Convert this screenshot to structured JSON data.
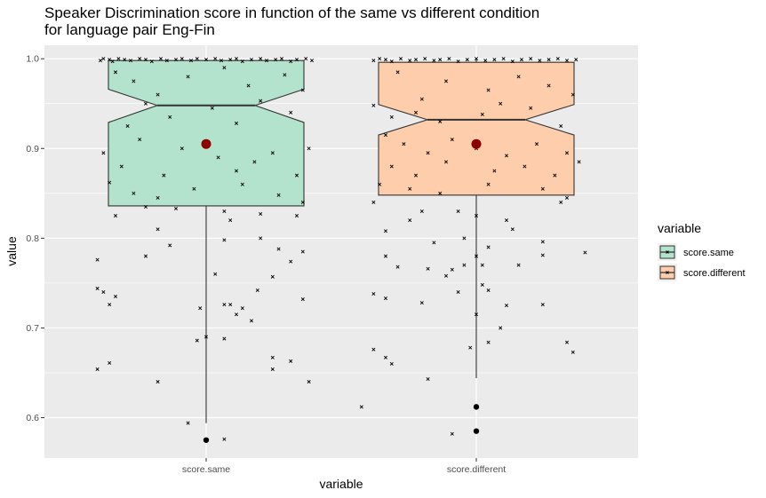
{
  "chart_data": {
    "type": "boxplot",
    "title": "Speaker Discrimination score in function of the same vs different condition\nfor language pair Eng-Fin",
    "xlabel": "variable",
    "ylabel": "value",
    "categories": [
      "score.same",
      "score.different"
    ],
    "ylim": [
      0.555,
      1.015
    ],
    "yticks": [
      0.6,
      0.7,
      0.8,
      0.9,
      1.0
    ],
    "ytick_labels": [
      "0.6",
      "0.7",
      "0.8",
      "0.9",
      "1.0"
    ],
    "notched": true,
    "grid": true,
    "legend": {
      "title": "variable",
      "position": "right",
      "entries": [
        "score.same",
        "score.different"
      ]
    },
    "colors": {
      "score.same": "#b3e2cd",
      "score.different": "#fdcdac",
      "panel": "#ebebeb",
      "mean_point": "#8b0000"
    },
    "boxes": [
      {
        "name": "score.same",
        "q1": 0.836,
        "median": 0.948,
        "q3": 0.998,
        "notch_low": 0.929,
        "notch_high": 0.966,
        "whisker_low": 0.594,
        "whisker_high": 1.0,
        "mean": 0.905,
        "outliers": [
          0.575
        ]
      },
      {
        "name": "score.different",
        "q1": 0.848,
        "median": 0.932,
        "q3": 0.996,
        "notch_low": 0.915,
        "notch_high": 0.949,
        "whisker_low": 0.644,
        "whisker_high": 1.0,
        "mean": 0.905,
        "outliers": [
          0.612,
          0.585
        ]
      }
    ],
    "jitter": [
      {
        "name": "score.same",
        "points": [
          [
            -0.35,
            0.998
          ],
          [
            -0.34,
            1.0
          ],
          [
            -0.32,
            0.999
          ],
          [
            -0.31,
            0.997
          ],
          [
            -0.29,
            1.0
          ],
          [
            -0.27,
            0.999
          ],
          [
            -0.25,
            0.998
          ],
          [
            -0.22,
            1.0
          ],
          [
            -0.2,
            0.999
          ],
          [
            -0.18,
            0.997
          ],
          [
            -0.15,
            1.0
          ],
          [
            -0.13,
            0.998
          ],
          [
            -0.1,
            0.999
          ],
          [
            -0.08,
            1.0
          ],
          [
            -0.05,
            0.998
          ],
          [
            -0.03,
            1.0
          ],
          [
            0.0,
            0.999
          ],
          [
            0.03,
            1.0
          ],
          [
            0.05,
            0.998
          ],
          [
            0.08,
            0.999
          ],
          [
            0.1,
            1.0
          ],
          [
            0.12,
            0.997
          ],
          [
            0.15,
            0.999
          ],
          [
            0.18,
            1.0
          ],
          [
            0.2,
            0.998
          ],
          [
            0.23,
            0.999
          ],
          [
            0.25,
            1.0
          ],
          [
            0.28,
            0.997
          ],
          [
            0.3,
            0.999
          ],
          [
            0.33,
            1.0
          ],
          [
            0.35,
            0.998
          ],
          [
            -0.3,
            0.985
          ],
          [
            -0.24,
            0.975
          ],
          [
            -0.16,
            0.96
          ],
          [
            -0.06,
            0.98
          ],
          [
            0.06,
            0.99
          ],
          [
            0.14,
            0.97
          ],
          [
            0.26,
            0.982
          ],
          [
            0.32,
            0.965
          ],
          [
            -0.2,
            0.95
          ],
          [
            -0.12,
            0.935
          ],
          [
            0.02,
            0.945
          ],
          [
            0.18,
            0.953
          ],
          [
            0.28,
            0.94
          ],
          [
            -0.26,
            0.925
          ],
          [
            0.1,
            0.928
          ],
          [
            -0.34,
            0.895
          ],
          [
            -0.28,
            0.88
          ],
          [
            -0.22,
            0.91
          ],
          [
            -0.14,
            0.87
          ],
          [
            -0.08,
            0.9
          ],
          [
            0.04,
            0.89
          ],
          [
            0.1,
            0.875
          ],
          [
            0.16,
            0.885
          ],
          [
            0.22,
            0.895
          ],
          [
            0.3,
            0.87
          ],
          [
            0.34,
            0.9
          ],
          [
            -0.32,
            0.862
          ],
          [
            -0.24,
            0.85
          ],
          [
            -0.16,
            0.845
          ],
          [
            -0.04,
            0.855
          ],
          [
            0.12,
            0.86
          ],
          [
            0.24,
            0.848
          ],
          [
            0.32,
            0.84
          ],
          [
            -0.3,
            0.825
          ],
          [
            -0.2,
            0.835
          ],
          [
            -0.1,
            0.833
          ],
          [
            0.06,
            0.83
          ],
          [
            0.18,
            0.827
          ],
          [
            0.3,
            0.825
          ],
          [
            -0.16,
            0.81
          ],
          [
            0.08,
            0.82
          ],
          [
            -0.36,
            0.776
          ],
          [
            -0.2,
            0.78
          ],
          [
            -0.12,
            0.792
          ],
          [
            0.06,
            0.798
          ],
          [
            0.18,
            0.8
          ],
          [
            0.24,
            0.788
          ],
          [
            0.28,
            0.774
          ],
          [
            0.32,
            0.785
          ],
          [
            -0.36,
            0.744
          ],
          [
            -0.34,
            0.74
          ],
          [
            -0.32,
            0.726
          ],
          [
            -0.3,
            0.735
          ],
          [
            0.03,
            0.76
          ],
          [
            0.12,
            0.722
          ],
          [
            0.17,
            0.742
          ],
          [
            0.22,
            0.757
          ],
          [
            0.32,
            0.732
          ],
          [
            0.08,
            0.726
          ],
          [
            0.1,
            0.715
          ],
          [
            0.06,
            0.726
          ],
          [
            -0.02,
            0.722
          ],
          [
            0.15,
            0.708
          ],
          [
            -0.03,
            0.686
          ],
          [
            0.06,
            0.688
          ],
          [
            0.0,
            0.69
          ],
          [
            -0.36,
            0.654
          ],
          [
            -0.32,
            0.661
          ],
          [
            -0.16,
            0.64
          ],
          [
            0.22,
            0.654
          ],
          [
            0.22,
            0.667
          ],
          [
            0.28,
            0.663
          ],
          [
            0.34,
            0.64
          ],
          [
            -0.06,
            0.594
          ],
          [
            0.06,
            0.576
          ]
        ]
      },
      {
        "name": "score.different",
        "points": [
          [
            -0.34,
            0.998
          ],
          [
            -0.32,
            1.0
          ],
          [
            -0.3,
            0.999
          ],
          [
            -0.28,
            0.997
          ],
          [
            -0.25,
            1.0
          ],
          [
            -0.22,
            0.998
          ],
          [
            -0.2,
            0.999
          ],
          [
            -0.17,
            1.0
          ],
          [
            -0.14,
            0.998
          ],
          [
            -0.12,
            0.999
          ],
          [
            -0.09,
            1.0
          ],
          [
            -0.06,
            0.997
          ],
          [
            -0.03,
            0.999
          ],
          [
            0.0,
            1.0
          ],
          [
            0.03,
            0.998
          ],
          [
            0.06,
            0.999
          ],
          [
            0.09,
            1.0
          ],
          [
            0.12,
            0.997
          ],
          [
            0.15,
            0.999
          ],
          [
            0.18,
            1.0
          ],
          [
            0.21,
            0.998
          ],
          [
            0.24,
            0.999
          ],
          [
            0.27,
            1.0
          ],
          [
            0.3,
            0.998
          ],
          [
            0.33,
            0.999
          ],
          [
            -0.26,
            0.985
          ],
          [
            -0.1,
            0.975
          ],
          [
            0.04,
            0.965
          ],
          [
            0.14,
            0.98
          ],
          [
            0.24,
            0.97
          ],
          [
            0.32,
            0.96
          ],
          [
            -0.18,
            0.955
          ],
          [
            0.08,
            0.95
          ],
          [
            -0.34,
            0.948
          ],
          [
            -0.28,
            0.935
          ],
          [
            -0.2,
            0.94
          ],
          [
            -0.12,
            0.93
          ],
          [
            0.02,
            0.938
          ],
          [
            0.18,
            0.945
          ],
          [
            0.28,
            0.925
          ],
          [
            -0.3,
            0.915
          ],
          [
            -0.24,
            0.905
          ],
          [
            -0.16,
            0.895
          ],
          [
            -0.08,
            0.91
          ],
          [
            0.0,
            0.9
          ],
          [
            0.1,
            0.892
          ],
          [
            0.2,
            0.905
          ],
          [
            0.3,
            0.895
          ],
          [
            -0.28,
            0.88
          ],
          [
            -0.2,
            0.87
          ],
          [
            -0.1,
            0.885
          ],
          [
            0.06,
            0.875
          ],
          [
            0.16,
            0.88
          ],
          [
            0.26,
            0.87
          ],
          [
            0.34,
            0.885
          ],
          [
            -0.32,
            0.86
          ],
          [
            -0.22,
            0.855
          ],
          [
            -0.12,
            0.85
          ],
          [
            0.04,
            0.86
          ],
          [
            0.22,
            0.855
          ],
          [
            0.3,
            0.845
          ],
          [
            -0.34,
            0.84
          ],
          [
            -0.18,
            0.83
          ],
          [
            -0.06,
            0.83
          ],
          [
            0.0,
            0.825
          ],
          [
            0.1,
            0.82
          ],
          [
            0.28,
            0.84
          ],
          [
            -0.22,
            0.82
          ],
          [
            -0.3,
            0.808
          ],
          [
            -0.14,
            0.795
          ],
          [
            -0.04,
            0.8
          ],
          [
            0.04,
            0.79
          ],
          [
            0.12,
            0.81
          ],
          [
            0.22,
            0.796
          ],
          [
            -0.3,
            0.78
          ],
          [
            -0.26,
            0.768
          ],
          [
            -0.16,
            0.766
          ],
          [
            -0.1,
            0.758
          ],
          [
            -0.04,
            0.77
          ],
          [
            0.0,
            0.78
          ],
          [
            0.02,
            0.77
          ],
          [
            0.14,
            0.77
          ],
          [
            0.22,
            0.781
          ],
          [
            0.36,
            0.784
          ],
          [
            -0.08,
            0.765
          ],
          [
            -0.34,
            0.738
          ],
          [
            -0.3,
            0.733
          ],
          [
            -0.18,
            0.728
          ],
          [
            -0.06,
            0.74
          ],
          [
            0.02,
            0.748
          ],
          [
            0.0,
            0.715
          ],
          [
            0.04,
            0.742
          ],
          [
            0.1,
            0.725
          ],
          [
            0.22,
            0.726
          ],
          [
            0.08,
            0.7
          ],
          [
            0.04,
            0.684
          ],
          [
            0.3,
            0.684
          ],
          [
            0.32,
            0.673
          ],
          [
            -0.02,
            0.678
          ],
          [
            -0.34,
            0.676
          ],
          [
            -0.3,
            0.667
          ],
          [
            -0.28,
            0.66
          ],
          [
            -0.16,
            0.643
          ],
          [
            -0.38,
            0.612
          ],
          [
            -0.08,
            0.582
          ]
        ]
      }
    ]
  }
}
